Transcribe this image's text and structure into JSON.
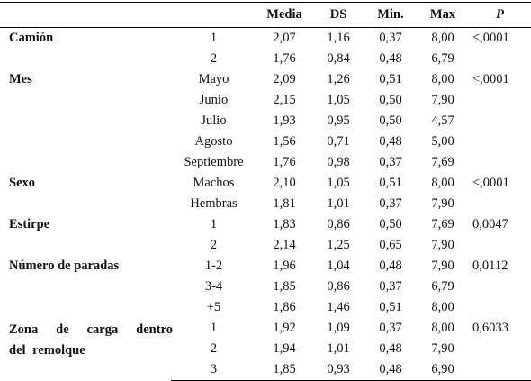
{
  "headers": [
    "",
    "",
    "Media",
    "DS",
    "Min.",
    "Max",
    "P"
  ],
  "groups": [
    {
      "name": "Camión",
      "rows": [
        {
          "level": "1",
          "media": "2,07",
          "ds": "1,16",
          "min": "0,37",
          "max": "8,00",
          "p": "<,0001"
        },
        {
          "level": "2",
          "media": "1,76",
          "ds": "0,84",
          "min": "0,48",
          "max": "6,79",
          "p": ""
        }
      ]
    },
    {
      "name": "Mes",
      "rows": [
        {
          "level": "Mayo",
          "media": "2,09",
          "ds": "1,26",
          "min": "0,51",
          "max": "8,00",
          "p": "<,0001"
        },
        {
          "level": "Junio",
          "media": "2,15",
          "ds": "1,05",
          "min": "0,50",
          "max": "7,90",
          "p": ""
        },
        {
          "level": "Julio",
          "media": "1,93",
          "ds": "0,95",
          "min": "0,50",
          "max": "4,57",
          "p": ""
        },
        {
          "level": "Agosto",
          "media": "1,56",
          "ds": "0,71",
          "min": "0,48",
          "max": "5,00",
          "p": ""
        },
        {
          "level": "Septiembre",
          "media": "1,76",
          "ds": "0,98",
          "min": "0,37",
          "max": "7,69",
          "p": ""
        }
      ]
    },
    {
      "name": "Sexo",
      "rows": [
        {
          "level": "Machos",
          "media": "2,10",
          "ds": "1,05",
          "min": "0,51",
          "max": "8,00",
          "p": "<,0001"
        },
        {
          "level": "Hembras",
          "media": "1,81",
          "ds": "1,01",
          "min": "0,37",
          "max": "7,90",
          "p": ""
        }
      ]
    },
    {
      "name": "Estirpe",
      "rows": [
        {
          "level": "1",
          "media": "1,83",
          "ds": "0,86",
          "min": "0,50",
          "max": "7,69",
          "p": "0,0047"
        },
        {
          "level": "2",
          "media": "2,14",
          "ds": "1,25",
          "min": "0,65",
          "max": "7,90",
          "p": ""
        }
      ]
    },
    {
      "name": "Número de paradas",
      "rows": [
        {
          "level": "1-2",
          "media": "1,96",
          "ds": "1,04",
          "min": "0,48",
          "max": "7,90",
          "p": "0,0112"
        },
        {
          "level": "3-4",
          "media": "1,85",
          "ds": "0,86",
          "min": "0,37",
          "max": "6,79",
          "p": ""
        },
        {
          "level": "+5",
          "media": "1,86",
          "ds": "1,46",
          "min": "0,51",
          "max": "8,00",
          "p": ""
        }
      ]
    },
    {
      "name_lines": [
        "Zona de carga dentro",
        "del remolque"
      ],
      "rows": [
        {
          "level": "1",
          "media": "1,92",
          "ds": "1,09",
          "min": "0,37",
          "max": "8,00",
          "p": "0,6033"
        },
        {
          "level": "2",
          "media": "1,94",
          "ds": "1,01",
          "min": "0,48",
          "max": "7,90",
          "p": ""
        },
        {
          "level": "3",
          "media": "1,85",
          "ds": "0,93",
          "min": "0,48",
          "max": "6,90",
          "p": ""
        }
      ]
    }
  ]
}
